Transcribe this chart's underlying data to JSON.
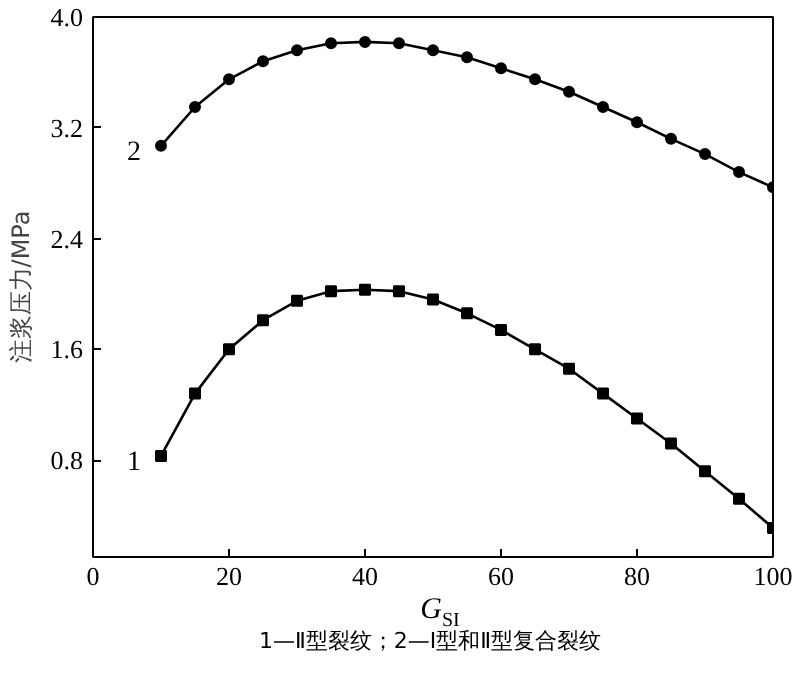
{
  "chart_data": {
    "type": "line",
    "xlabel": "G$_{SI}$",
    "ylabel": "注浆压力/MPa",
    "x": [
      10,
      15,
      20,
      25,
      30,
      35,
      40,
      45,
      50,
      55,
      60,
      65,
      70,
      75,
      80,
      85,
      90,
      95,
      100
    ],
    "series": [
      {
        "name": "1",
        "color": "#000000",
        "marker": "square",
        "values": [
          0.83,
          1.28,
          1.6,
          1.81,
          1.95,
          2.02,
          2.03,
          2.02,
          1.96,
          1.86,
          1.74,
          1.6,
          1.46,
          1.28,
          1.1,
          0.92,
          0.72,
          0.52,
          0.31
        ]
      },
      {
        "name": "2",
        "color": "#000000",
        "marker": "circle",
        "values": [
          3.07,
          3.35,
          3.55,
          3.68,
          3.76,
          3.81,
          3.82,
          3.81,
          3.76,
          3.71,
          3.63,
          3.55,
          3.46,
          3.35,
          3.24,
          3.12,
          3.01,
          2.88,
          2.77
        ]
      }
    ],
    "xlim": [
      0,
      100
    ],
    "xticks": [
      0,
      20,
      40,
      60,
      80,
      100
    ],
    "ylim": [
      0.1,
      4.0
    ],
    "yticks": [
      0.8,
      1.6,
      2.4,
      3.2,
      {
        "value": 4.0,
        "label": "4.0"
      }
    ],
    "grid": false,
    "line_style": "solid",
    "annotations": [
      "1—Ⅱ型裂纹；2—Ⅰ型和Ⅱ型复合裂纹"
    ]
  }
}
